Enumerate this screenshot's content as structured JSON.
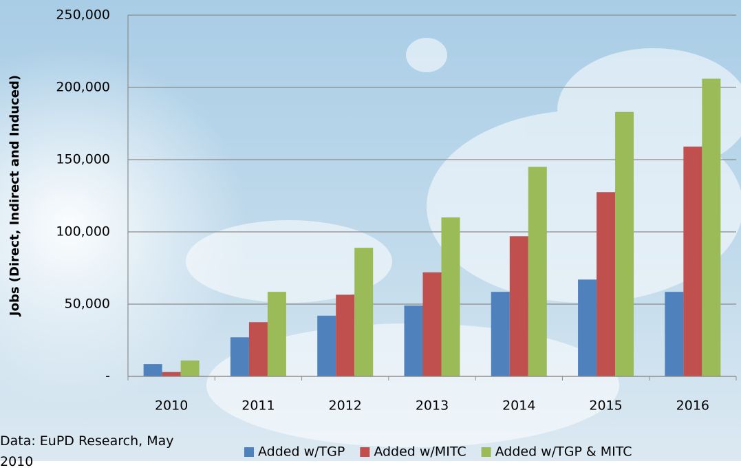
{
  "chart_data": {
    "type": "bar",
    "y_axis_label": "Jobs (Direct, Indirect and Induced)",
    "source": "Data: EuPD Research, May 2010",
    "categories": [
      "2010",
      "2011",
      "2012",
      "2013",
      "2014",
      "2015",
      "2016"
    ],
    "series": [
      {
        "name": "Added w/TGP",
        "color": "#4f81bd",
        "values": [
          8500,
          27000,
          42000,
          49000,
          58500,
          67000,
          58500
        ]
      },
      {
        "name": "Added w/MITC",
        "color": "#c0504d",
        "values": [
          3000,
          37500,
          56500,
          72000,
          97000,
          127500,
          159000
        ]
      },
      {
        "name": "Added w/TGP & MITC",
        "color": "#9bbb59",
        "values": [
          11000,
          58500,
          89000,
          110000,
          145000,
          183000,
          206000
        ]
      }
    ],
    "ylim": [
      0,
      250000
    ],
    "yticks": [
      {
        "value": 0,
        "label": "-"
      },
      {
        "value": 50000,
        "label": "50,000"
      },
      {
        "value": 100000,
        "label": "100,000"
      },
      {
        "value": 150000,
        "label": "150,000"
      },
      {
        "value": 200000,
        "label": "200,000"
      },
      {
        "value": 250000,
        "label": "250,000"
      }
    ],
    "grid": true,
    "legend": "bottom"
  }
}
